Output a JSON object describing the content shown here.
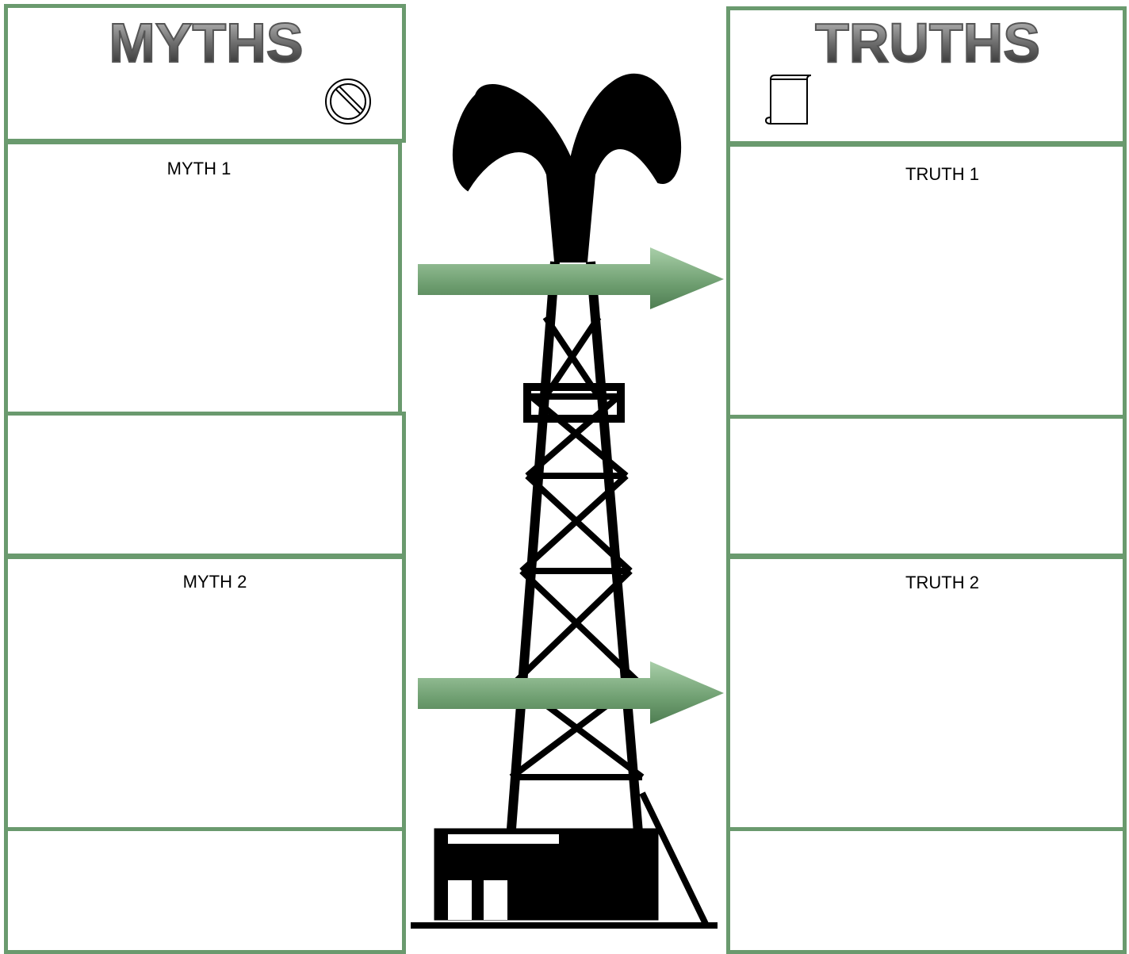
{
  "myths": {
    "title": "MYTHS",
    "items": [
      "MYTH 1",
      "MYTH 2"
    ]
  },
  "truths": {
    "title": "TRUTHS",
    "items": [
      "TRUTH 1",
      "TRUTH 2"
    ]
  }
}
